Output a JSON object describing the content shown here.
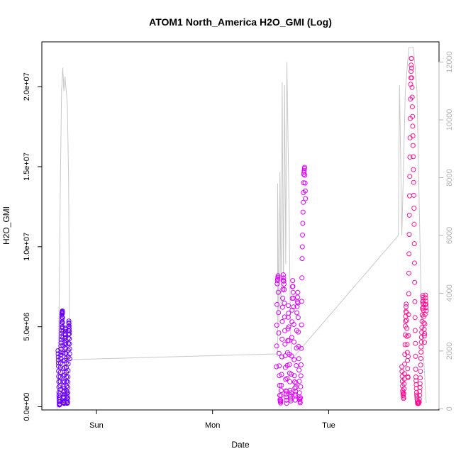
{
  "chart_data": {
    "type": "scatter",
    "title": "ATOM1 North_America H2O_GMI (Log)",
    "xlabel": "Date",
    "ylabel": "H2O_GMI",
    "x_ticks": [
      "Sun",
      "Mon",
      "Tue"
    ],
    "y_ticks": [
      "0.0e+00",
      "5.0e+06",
      "1.0e+07",
      "1.5e+07",
      "2.0e+07"
    ],
    "y_tick_values": [
      0,
      5000000,
      10000000,
      15000000,
      20000000
    ],
    "y2_ticks": [
      "0",
      "2000",
      "4000",
      "6000",
      "8000",
      "10000",
      "12000"
    ],
    "y2_tick_values": [
      0,
      2000,
      4000,
      6000,
      8000,
      10000,
      12000
    ],
    "x_unit": "days since first tick (Sun = 0)",
    "xlim": [
      -0.47,
      2.95
    ],
    "ylim": [
      -200000,
      22800000
    ],
    "y2lim": [
      -40,
      12700
    ],
    "grid": false,
    "point_color_gradient": [
      "#5a00ff",
      "#e600ff",
      "#ff1493"
    ],
    "altitude_line_color": "#c8c8c8",
    "series": [
      {
        "name": "H2O_GMI",
        "segments": [
          {
            "x_start": -0.33,
            "x_end": -0.23,
            "color": "#6a00ff",
            "values": [
              3500000,
              2500000,
              800000,
              100000,
              200000,
              1500000,
              3000000,
              4000000,
              5000000,
              5800000,
              6000000,
              4500000,
              2000000,
              300000,
              200000,
              1200000,
              3500000,
              5000000,
              4000000,
              2500000,
              1000000,
              200000,
              300000,
              2000000,
              4200000,
              5400000,
              4600000,
              3000000
            ]
          },
          {
            "x_start": 1.55,
            "x_end": 1.8,
            "color": "#e000ff",
            "values": [
              2500000,
              7800000,
              8200000,
              3000000,
              500000,
              200000,
              1500000,
              6000000,
              8300000,
              7500000,
              4000000,
              1000000,
              200000,
              3500000,
              6500000,
              3000000,
              800000,
              300000,
              5000000,
              8000000,
              6500000,
              2000000,
              400000,
              1500000,
              6000000,
              7200000,
              3500000,
              600000,
              200000,
              3000000,
              9000000,
              12000000,
              14500000,
              15000000,
              13000000
            ]
          },
          {
            "x_start": 2.63,
            "x_end": 2.84,
            "color": "#ff1493",
            "values": [
              2500000,
              1000000,
              500000,
              2000000,
              5000000,
              6500000,
              4000000,
              1500000,
              8000000,
              14000000,
              20000000,
              22000000,
              19000000,
              16000000,
              12000000,
              6000000,
              2000000,
              800000,
              200000,
              200000,
              300000,
              1500000,
              3500000,
              5000000,
              7000000,
              6000000,
              4000000,
              7000000,
              6000000
            ]
          }
        ]
      },
      {
        "name": "altitude",
        "axis": "right",
        "line": [
          [
            -0.34,
            0
          ],
          [
            -0.33,
            1200
          ],
          [
            -0.32,
            4000
          ],
          [
            -0.31,
            8000
          ],
          [
            -0.3,
            11000
          ],
          [
            -0.29,
            11800
          ],
          [
            -0.28,
            11000
          ],
          [
            -0.27,
            11500
          ],
          [
            -0.26,
            11000
          ],
          [
            -0.25,
            10500
          ],
          [
            -0.24,
            8000
          ],
          [
            -0.23,
            1700
          ],
          [
            1.56,
            1900
          ],
          [
            1.56,
            7800
          ],
          [
            1.57,
            3000
          ],
          [
            1.58,
            8200
          ],
          [
            1.59,
            3500
          ],
          [
            1.6,
            11300
          ],
          [
            1.61,
            4000
          ],
          [
            1.62,
            11200
          ],
          [
            1.63,
            5000
          ],
          [
            1.64,
            12000
          ],
          [
            1.66,
            6500
          ],
          [
            1.67,
            3000
          ],
          [
            1.68,
            1700
          ],
          [
            2.6,
            6000
          ],
          [
            2.61,
            11200
          ],
          [
            2.63,
            6000
          ],
          [
            2.66,
            11000
          ],
          [
            2.69,
            12500
          ],
          [
            2.73,
            12500
          ],
          [
            2.76,
            11000
          ],
          [
            2.8,
            3000
          ],
          [
            2.84,
            200
          ]
        ]
      }
    ]
  }
}
